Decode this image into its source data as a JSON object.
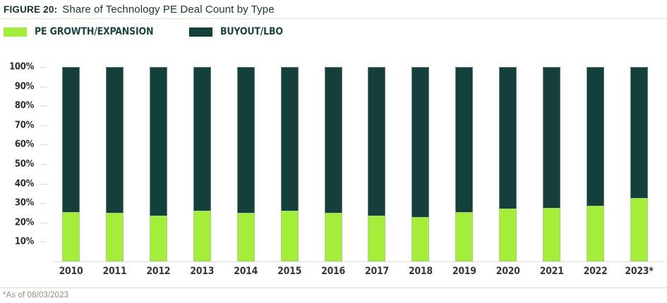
{
  "figure": {
    "label": "FIGURE 20:",
    "title": "Share of Technology PE Deal Count by Type",
    "footnote": "*As of 08/03/2023"
  },
  "legend": {
    "items": [
      {
        "label": "PE GROWTH/EXPANSION",
        "color": "#a4ee3b"
      },
      {
        "label": "BUYOUT/LBO",
        "color": "#143f3b"
      }
    ]
  },
  "chart_data": {
    "type": "bar",
    "subtype": "stacked-100-percent-column",
    "title": "Share of Technology PE Deal Count by Type",
    "xlabel": "",
    "ylabel": "",
    "unit": "%",
    "ylim": [
      0,
      100
    ],
    "grid": "none",
    "legend_position": "top-left",
    "categories": [
      "2010",
      "2011",
      "2012",
      "2013",
      "2014",
      "2015",
      "2016",
      "2017",
      "2018",
      "2019",
      "2020",
      "2021",
      "2022",
      "2023*"
    ],
    "series": [
      {
        "name": "PE GROWTH/EXPANSION",
        "color": "#a4ee3b",
        "values": [
          25.5,
          25,
          23.5,
          26,
          25,
          26,
          25,
          23.5,
          23,
          25.5,
          27,
          27.5,
          28.5,
          32.5
        ]
      },
      {
        "name": "BUYOUT/LBO",
        "color": "#143f3b",
        "values": [
          74.5,
          75,
          76.5,
          74,
          75,
          74,
          75,
          76.5,
          77,
          74.5,
          73,
          72.5,
          71.5,
          67.5
        ]
      }
    ],
    "y_ticks": [
      {
        "label": "10%",
        "value": 10
      },
      {
        "label": "20%",
        "value": 20
      },
      {
        "label": "30%",
        "value": 30
      },
      {
        "label": "40%",
        "value": 40
      },
      {
        "label": "50%",
        "value": 50
      },
      {
        "label": "60%",
        "value": 60
      },
      {
        "label": "70%",
        "value": 70
      },
      {
        "label": "80%",
        "value": 80
      },
      {
        "label": "90%",
        "value": 90
      },
      {
        "label": "100%",
        "value": 100
      }
    ],
    "footnote": "*As of 08/03/2023"
  },
  "colors": {
    "growth_green": "#a4ee3b",
    "buyout_teal": "#143f3b",
    "rule_beige": "#e6e1d3",
    "tick_gray": "#dcd6c8",
    "header_text": "#14332e",
    "axis_text": "#2d2d2d",
    "footnote_gray": "#8f8d84"
  }
}
